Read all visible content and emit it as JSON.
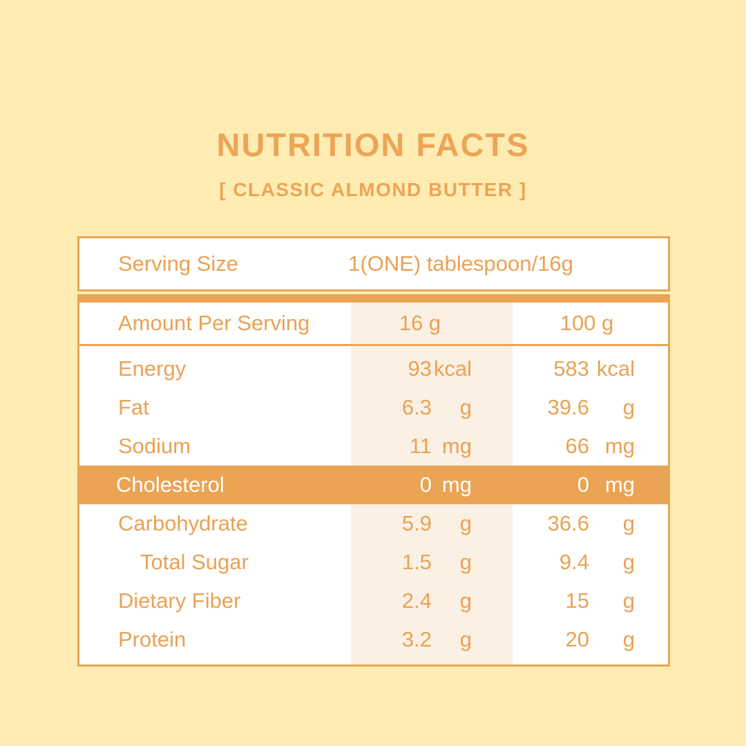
{
  "colors": {
    "background": "#FEECB3",
    "accent_orange": "#EAA453",
    "text_orange": "#E9A255",
    "shaded_column": "#FAF0E4",
    "card_white": "#FFFFFF",
    "highlight_text": "#FFFFFF"
  },
  "header": {
    "title": "NUTRITION FACTS",
    "subtitle": "[ CLASSIC ALMOND BUTTER ]"
  },
  "table": {
    "serving": {
      "label": "Serving Size",
      "value": "1(ONE) tablespoon/16g"
    },
    "columns": {
      "label": "Amount Per Serving",
      "col_16g": "16 g",
      "col_100g": "100 g"
    },
    "rows": [
      {
        "label": "Energy",
        "per16": {
          "value": "93",
          "unit": "kcal"
        },
        "per100": {
          "value": "583",
          "unit": "kcal"
        },
        "highlight": false,
        "indent": false
      },
      {
        "label": "Fat",
        "per16": {
          "value": "6.3",
          "unit": "g"
        },
        "per100": {
          "value": "39.6",
          "unit": "g"
        },
        "highlight": false,
        "indent": false
      },
      {
        "label": "Sodium",
        "per16": {
          "value": "11",
          "unit": "mg"
        },
        "per100": {
          "value": "66",
          "unit": "mg"
        },
        "highlight": false,
        "indent": false
      },
      {
        "label": "Cholesterol",
        "per16": {
          "value": "0",
          "unit": "mg"
        },
        "per100": {
          "value": "0",
          "unit": "mg"
        },
        "highlight": true,
        "indent": false
      },
      {
        "label": "Carbohydrate",
        "per16": {
          "value": "5.9",
          "unit": "g"
        },
        "per100": {
          "value": "36.6",
          "unit": "g"
        },
        "highlight": false,
        "indent": false
      },
      {
        "label": "Total Sugar",
        "per16": {
          "value": "1.5",
          "unit": "g"
        },
        "per100": {
          "value": "9.4",
          "unit": "g"
        },
        "highlight": false,
        "indent": true
      },
      {
        "label": "Dietary Fiber",
        "per16": {
          "value": "2.4",
          "unit": "g"
        },
        "per100": {
          "value": "15",
          "unit": "g"
        },
        "highlight": false,
        "indent": false
      },
      {
        "label": "Protein",
        "per16": {
          "value": "3.2",
          "unit": "g"
        },
        "per100": {
          "value": "20",
          "unit": "g"
        },
        "highlight": false,
        "indent": false
      }
    ]
  }
}
